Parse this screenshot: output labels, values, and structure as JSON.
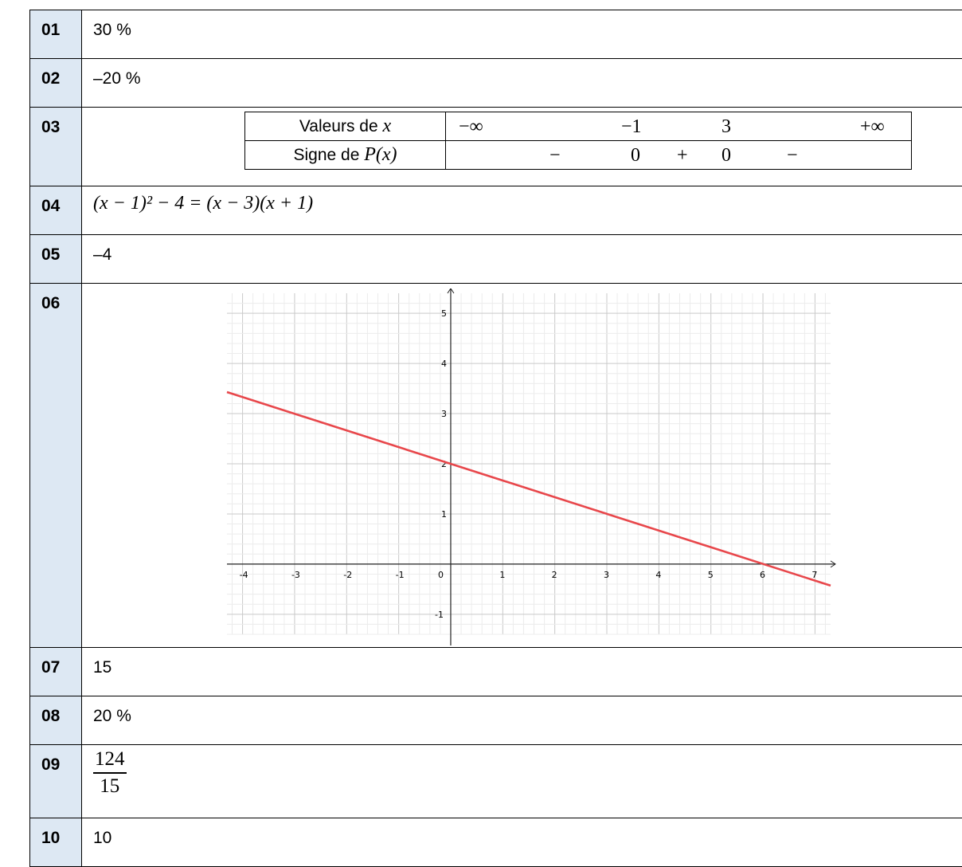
{
  "rows": [
    {
      "num": "01",
      "answer": "30 %"
    },
    {
      "num": "02",
      "answer": "–20 %"
    },
    {
      "num": "03",
      "sign_table": {
        "header_x": "Valeurs de ",
        "var_x": "x",
        "header_sign": "Signe de ",
        "func": "P",
        "func_arg": "(x)",
        "x_values": [
          "−∞",
          "−1",
          "3",
          "+∞"
        ],
        "signs": [
          "−",
          "0",
          "+",
          "0",
          "−"
        ]
      }
    },
    {
      "num": "04",
      "equation": "(x − 1)² − 4 = (x − 3)(x + 1)"
    },
    {
      "num": "05",
      "answer": "–4"
    },
    {
      "num": "06"
    },
    {
      "num": "07",
      "answer": "15"
    },
    {
      "num": "08",
      "answer": "20 %"
    },
    {
      "num": "09",
      "fraction": {
        "numerator": "124",
        "denominator": "15"
      }
    },
    {
      "num": "10",
      "answer": "10"
    }
  ],
  "chart_data": {
    "type": "line",
    "x_ticks": [
      "-4",
      "-3",
      "-2",
      "-1",
      "0",
      "1",
      "2",
      "3",
      "4",
      "5",
      "6",
      "7"
    ],
    "y_ticks": [
      "-1",
      "1",
      "2",
      "3",
      "4",
      "5"
    ],
    "xlim": [
      -4.3,
      7.3
    ],
    "ylim": [
      -1.4,
      5.4
    ],
    "grid": true,
    "series": [
      {
        "color": "#e8474b",
        "points": [
          [
            -4.3,
            3.43
          ],
          [
            7.3,
            -0.43
          ]
        ]
      }
    ]
  }
}
